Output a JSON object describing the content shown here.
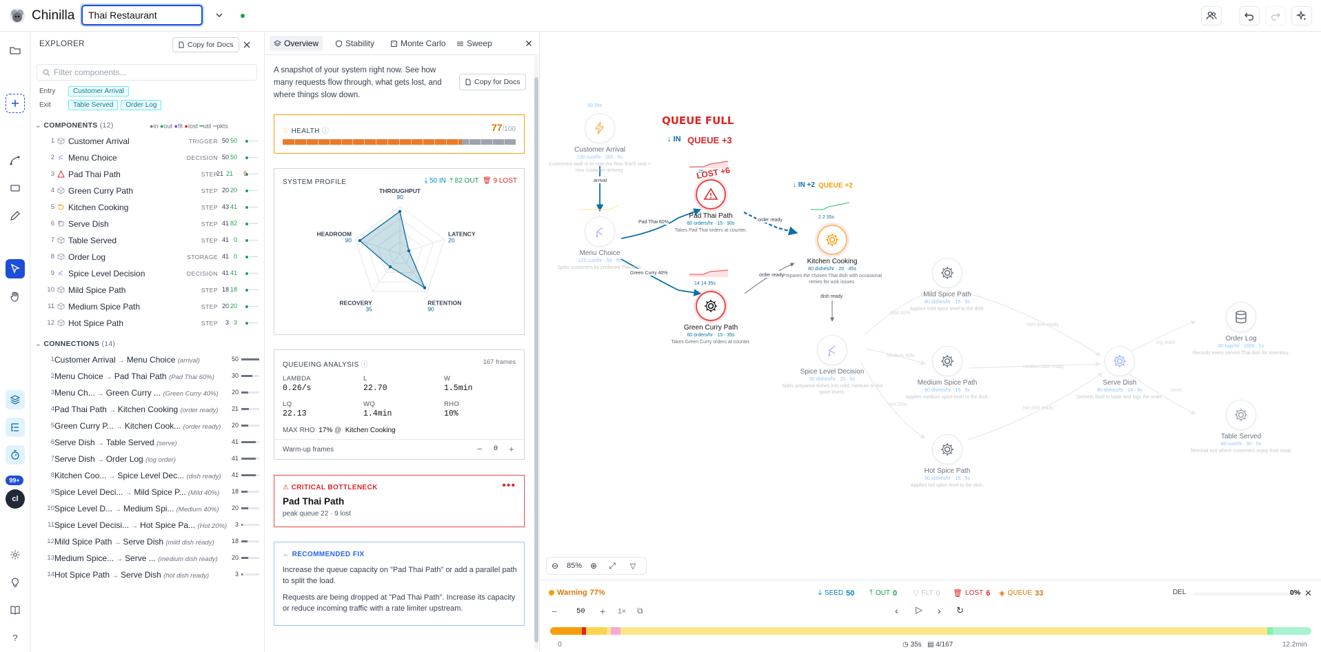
{
  "app": {
    "title": "Chinilla",
    "project_name": "Thai Restaurant"
  },
  "explorer": {
    "title": "EXPLORER",
    "copy_label": "Copy for Docs",
    "filter_placeholder": "Filter components...",
    "entry_label": "Entry",
    "exit_label": "Exit",
    "entry_tags": [
      "Customer Arrival"
    ],
    "exit_tags": [
      "Table Served",
      "Order Log"
    ],
    "components_title": "COMPONENTS",
    "components_count": "(12)",
    "legend": [
      "in",
      "out",
      "flt",
      "lost",
      "util",
      "pkts"
    ],
    "components": [
      {
        "num": "1",
        "name": "Customer Arrival",
        "type": "TRIGGER",
        "a": "50",
        "b": "50"
      },
      {
        "num": "2",
        "name": "Menu Choice",
        "type": "DECISION",
        "a": "50",
        "b": "50"
      },
      {
        "num": "3",
        "name": "Pad Thai Path",
        "type": "STEP",
        "a": "21",
        "b": "21",
        "c": "9"
      },
      {
        "num": "4",
        "name": "Green Curry Path",
        "type": "STEP",
        "a": "20",
        "b": "20"
      },
      {
        "num": "5",
        "name": "Kitchen Cooking",
        "type": "STEP",
        "a": "43",
        "b": "41"
      },
      {
        "num": "6",
        "name": "Serve Dish",
        "type": "STEP",
        "a": "41",
        "b": "82"
      },
      {
        "num": "7",
        "name": "Table Served",
        "type": "STEP",
        "a": "41",
        "b": "0"
      },
      {
        "num": "8",
        "name": "Order Log",
        "type": "STORAGE",
        "a": "41",
        "b": "0"
      },
      {
        "num": "9",
        "name": "Spice Level Decision",
        "type": "DECISION",
        "a": "41",
        "b": "41"
      },
      {
        "num": "10",
        "name": "Mild Spice Path",
        "type": "STEP",
        "a": "18",
        "b": "18"
      },
      {
        "num": "11",
        "name": "Medium Spice Path",
        "type": "STEP",
        "a": "20",
        "b": "20"
      },
      {
        "num": "12",
        "name": "Hot Spice Path",
        "type": "STEP",
        "a": "3",
        "b": "3"
      }
    ],
    "connections_title": "CONNECTIONS",
    "connections_count": "(14)",
    "connections": [
      {
        "num": "1",
        "from": "Customer Arrival",
        "to": "Menu Choice",
        "label": "(arrival)",
        "v": "50",
        "f": 1.0
      },
      {
        "num": "2",
        "from": "Menu Choice",
        "to": "Pad Thai Path",
        "label": "(Pad Thai 60%)",
        "v": "30",
        "f": 0.6
      },
      {
        "num": "3",
        "from": "Menu Ch...",
        "to": "Green Curry ...",
        "label": "(Green Curry 40%)",
        "v": "20",
        "f": 0.4
      },
      {
        "num": "4",
        "from": "Pad Thai Path",
        "to": "Kitchen Cooking",
        "label": "(order ready)",
        "v": "21",
        "f": 0.42
      },
      {
        "num": "5",
        "from": "Green Curry P...",
        "to": "Kitchen Cook...",
        "label": "(order ready)",
        "v": "20",
        "f": 0.4
      },
      {
        "num": "6",
        "from": "Serve Dish",
        "to": "Table Served",
        "label": "(serve)",
        "v": "41",
        "f": 0.82
      },
      {
        "num": "7",
        "from": "Serve Dish",
        "to": "Order Log",
        "label": "(log order)",
        "v": "41",
        "f": 0.82
      },
      {
        "num": "8",
        "from": "Kitchen Coo...",
        "to": "Spice Level Dec...",
        "label": "(dish ready)",
        "v": "41",
        "f": 0.82
      },
      {
        "num": "9",
        "from": "Spice Level Deci...",
        "to": "Mild Spice P...",
        "label": "(Mild 40%)",
        "v": "18",
        "f": 0.36
      },
      {
        "num": "10",
        "from": "Spice Level D...",
        "to": "Medium Spi...",
        "label": "(Medium 40%)",
        "v": "20",
        "f": 0.4
      },
      {
        "num": "11",
        "from": "Spice Level Decisi...",
        "to": "Hot Spice Pa...",
        "label": "(Hot 20%)",
        "v": "3",
        "f": 0.06
      },
      {
        "num": "12",
        "from": "Mild Spice Path",
        "to": "Serve Dish",
        "label": "(mild dish ready)",
        "v": "18",
        "f": 0.36
      },
      {
        "num": "13",
        "from": "Medium Spice...",
        "to": "Serve ...",
        "label": "(medium dish ready)",
        "v": "20",
        "f": 0.4
      },
      {
        "num": "14",
        "from": "Hot Spice Path",
        "to": "Serve Dish",
        "label": "(hot dish ready)",
        "v": "3",
        "f": 0.06
      }
    ]
  },
  "panel": {
    "tabs": [
      "Overview",
      "Stability",
      "Monte Carlo",
      "Sweep"
    ],
    "intro": "A snapshot of your system right now. See how many requests flow through, what gets lost, and where things slow down.",
    "copy_label": "Copy for Docs",
    "health": {
      "label": "HEALTH",
      "value": "77",
      "max": "/100",
      "fraction": 0.77
    },
    "profile": {
      "title": "SYSTEM PROFILE",
      "in": "50 IN",
      "out": "82 OUT",
      "lost": "9 LOST",
      "axes": [
        {
          "name": "THROUGHPUT",
          "value": "90",
          "score": 90
        },
        {
          "name": "LATENCY",
          "value": "20",
          "score": 20
        },
        {
          "name": "RETENTION",
          "value": "90",
          "score": 90
        },
        {
          "name": "RECOVERY",
          "value": "35",
          "score": 35
        },
        {
          "name": "HEADROOM",
          "value": "90",
          "score": 90
        }
      ]
    },
    "queueing": {
      "title": "QUEUEING ANALYSIS",
      "frames": "167 frames",
      "metrics": [
        {
          "k": "LAMBDA",
          "v": "0.26/s"
        },
        {
          "k": "L",
          "v": "22.70"
        },
        {
          "k": "W",
          "v": "1.5min"
        },
        {
          "k": "LQ",
          "v": "22.13"
        },
        {
          "k": "WQ",
          "v": "1.4min"
        },
        {
          "k": "RHO",
          "v": "10%"
        }
      ],
      "max_rho_label": "MAX RHO",
      "max_rho_value": "17%",
      "max_rho_at": "@",
      "max_rho_node": "Kitchen Cooking",
      "warmup_label": "Warm-up frames",
      "warmup_value": "0"
    },
    "bottleneck": {
      "title": "CRITICAL BOTTLENECK",
      "name": "Pad Thai Path",
      "detail": "peak queue 22 · 9 lost"
    },
    "fix": {
      "title": "← RECOMMENDED FIX",
      "p1": "Increase the queue capacity on \"Pad Thai Path\" or add a parallel path to split the load.",
      "p2": "Requests are being dropped at \"Pad Thai Path\". Increase its capacity or reduce incoming traffic with a rate limiter upstream."
    }
  },
  "canvas": {
    "zoom": "85%",
    "alerts": {
      "queue_full": "QUEUE FULL",
      "queue_plus": "QUEUE +3",
      "lost": "LOST +6",
      "in_label": "↓ IN",
      "kc_in": "↓ IN +2",
      "kc_queue": "QUEUE +2"
    },
    "nodes": {
      "customer": {
        "name": "Customer Arrival",
        "stats": "120 cust/hr · 200 · 5s",
        "desc1": "Customers walk in to start the flow. Each seat +",
        "desc2": "new customer arriving.",
        "badge": "50  35s"
      },
      "menu": {
        "name": "Menu Choice",
        "stats": "120 cust/hr · 50 · 5s",
        "desc": "Splits customers by preferred Thai dish."
      },
      "padthai": {
        "name": "Pad Thai Path",
        "stats": "60 orders/hr · 15 · 90s",
        "desc": "Takes Pad Thai orders at counter.",
        "badge": "25"
      },
      "curry": {
        "name": "Green Curry Path",
        "stats": "60 orders/hr · 15 · 35s",
        "desc": "Takes Green Curry orders at counter.",
        "badge": "14   14   35s"
      },
      "kitchen": {
        "name": "Kitchen Cooking",
        "stats": "80 dishes/hr · 20 · 45s",
        "desc1": "Prepares the chosen Thai dish with occasional",
        "desc2": "retries for wok issues.",
        "badge": "2   2   35s"
      },
      "spice": {
        "name": "Spice Level Decision",
        "stats": "80 dishes/hr · 20 · 5s",
        "desc1": "Splits prepared dishes into mild, medium or hot",
        "desc2": "spice levels."
      },
      "mild": {
        "name": "Mild Spice Path",
        "stats": "80 dishes/hr · 15 · 5s",
        "desc": "Applies mild spice level to the dish."
      },
      "medium": {
        "name": "Medium Spice Path",
        "stats": "80 dishes/hr · 15 · 5s",
        "desc": "Applies medium spice level to the dish."
      },
      "hot": {
        "name": "Hot Spice Path",
        "stats": "80 dishes/hr · 15 · 5s",
        "desc": "Applies hot spice level to the dish."
      },
      "serve": {
        "name": "Serve Dish",
        "stats": "80 dishes/hr · 10 · 5s",
        "desc": "Delivers food to table and logs the order."
      },
      "orderlog": {
        "name": "Order Log",
        "stats": "80 logs/hr · 1000 · 1s",
        "desc": "Records every served Thai dish for inventory."
      },
      "table": {
        "name": "Table Served",
        "stats": "80 cust/hr · 90 · 5s",
        "desc": "Terminal exit where customers enjoy their meal."
      }
    },
    "edges": {
      "arrival": "arrival",
      "padthai60": "Pad Thai 60%",
      "curry40": "Green Curry 40%",
      "order_ready1": "order ready",
      "order_ready2": "order ready",
      "dish_ready": "dish ready",
      "mild40": "Mild 40%",
      "medium40": "Medium 40%",
      "hot20": "Hot 20%",
      "mild_ready": "mild dish ready",
      "medium_ready": "medium dish ready",
      "hot_ready": "hot dish ready",
      "log_order": "log order",
      "serve": "serve"
    }
  },
  "status": {
    "state": "Warning",
    "pct": "77%",
    "seed_label": "SEED",
    "seed": "50",
    "out_label": "OUT",
    "out": "0",
    "flt_label": "FLT",
    "flt": "0",
    "lost_label": "LOST",
    "lost": "6",
    "queue_label": "QUEUE",
    "queue": "33",
    "del_label": "DEL",
    "del_pct": "0%",
    "speed_value": "50",
    "speed_mult": "1×",
    "timeline_start": "0",
    "elapsed": "35s",
    "frame": "4/167",
    "total": "12.2min"
  },
  "colors": {
    "accent": "#1d4ed8",
    "warning": "#f59e0b",
    "danger": "#dc2626",
    "ok": "#16a34a",
    "teal": "#0e7490"
  }
}
